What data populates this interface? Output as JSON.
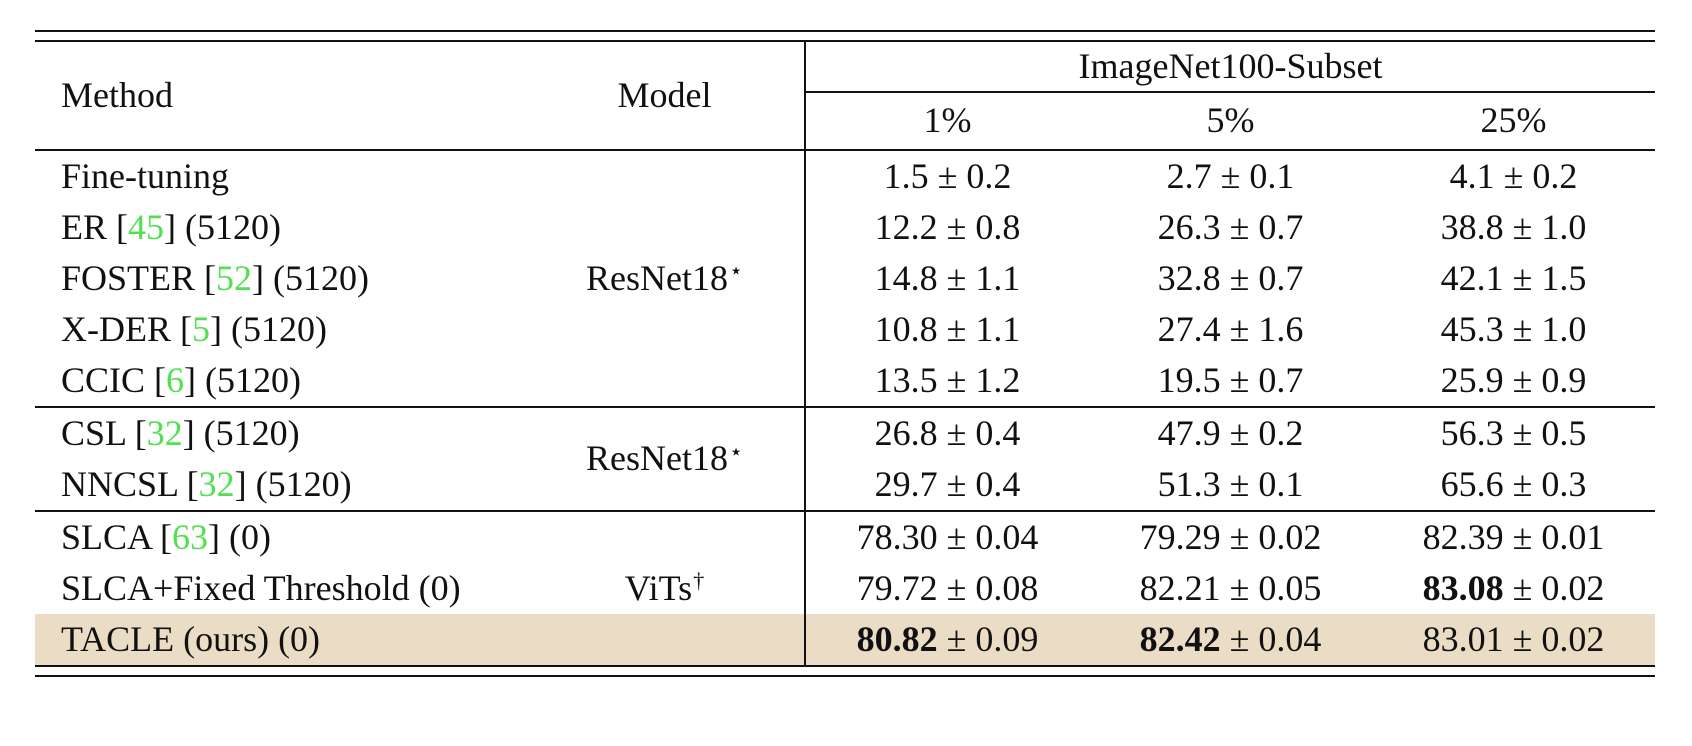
{
  "colors": {
    "highlight": "#ebdcc6",
    "cite": "#50e050",
    "rule": "#111111",
    "text": "#111111"
  },
  "header": {
    "method": "Method",
    "model": "Model",
    "group": "ImageNet100-Subset",
    "sub": [
      "1%",
      "5%",
      "25%"
    ]
  },
  "groups": [
    {
      "model": "ResNet18",
      "model_sup": "⋆",
      "rows": [
        {
          "pre": "Fine-tuning",
          "cite": "",
          "post": "",
          "c1": {
            "v": "1.5",
            "pm": "± 0.2",
            "b": false
          },
          "c2": {
            "v": "2.7",
            "pm": "± 0.1",
            "b": false
          },
          "c3": {
            "v": "4.1",
            "pm": "± 0.2",
            "b": false
          }
        },
        {
          "pre": "ER [",
          "cite": "45",
          "post": "] (5120)",
          "c1": {
            "v": "12.2",
            "pm": "± 0.8",
            "b": false
          },
          "c2": {
            "v": "26.3",
            "pm": "± 0.7",
            "b": false
          },
          "c3": {
            "v": "38.8",
            "pm": "± 1.0",
            "b": false
          }
        },
        {
          "pre": "FOSTER [",
          "cite": "52",
          "post": "] (5120)",
          "c1": {
            "v": "14.8",
            "pm": "± 1.1",
            "b": false
          },
          "c2": {
            "v": "32.8",
            "pm": "± 0.7",
            "b": false
          },
          "c3": {
            "v": "42.1",
            "pm": "± 1.5",
            "b": false
          }
        },
        {
          "pre": "X-DER [",
          "cite": "5",
          "post": "] (5120)",
          "c1": {
            "v": "10.8",
            "pm": "± 1.1",
            "b": false
          },
          "c2": {
            "v": "27.4",
            "pm": "± 1.6",
            "b": false
          },
          "c3": {
            "v": "45.3",
            "pm": "± 1.0",
            "b": false
          }
        },
        {
          "pre": "CCIC [",
          "cite": "6",
          "post": "] (5120)",
          "c1": {
            "v": "13.5",
            "pm": "± 1.2",
            "b": false
          },
          "c2": {
            "v": "19.5",
            "pm": "± 0.7",
            "b": false
          },
          "c3": {
            "v": "25.9",
            "pm": "± 0.9",
            "b": false
          }
        }
      ]
    },
    {
      "model": "ResNet18",
      "model_sup": "⋆",
      "rows": [
        {
          "pre": "CSL [",
          "cite": "32",
          "post": "] (5120)",
          "c1": {
            "v": "26.8",
            "pm": "± 0.4",
            "b": false
          },
          "c2": {
            "v": "47.9",
            "pm": "± 0.2",
            "b": false
          },
          "c3": {
            "v": "56.3",
            "pm": "± 0.5",
            "b": false
          }
        },
        {
          "pre": "NNCSL [",
          "cite": "32",
          "post": "] (5120)",
          "c1": {
            "v": "29.7",
            "pm": "± 0.4",
            "b": false
          },
          "c2": {
            "v": "51.3",
            "pm": "± 0.1",
            "b": false
          },
          "c3": {
            "v": "65.6",
            "pm": "± 0.3",
            "b": false
          }
        }
      ]
    },
    {
      "model": "ViTs",
      "model_sup": "†",
      "rows": [
        {
          "pre": "SLCA [",
          "cite": "63",
          "post": "] (0)",
          "c1": {
            "v": "78.30",
            "pm": "± 0.04",
            "b": false
          },
          "c2": {
            "v": "79.29",
            "pm": "± 0.02",
            "b": false
          },
          "c3": {
            "v": "82.39",
            "pm": "± 0.01",
            "b": false
          }
        },
        {
          "pre": "SLCA+Fixed Threshold (0)",
          "cite": "",
          "post": "",
          "c1": {
            "v": "79.72",
            "pm": "± 0.08",
            "b": false
          },
          "c2": {
            "v": "82.21",
            "pm": "± 0.05",
            "b": false
          },
          "c3": {
            "v": "83.08",
            "pm": "± 0.02",
            "b": true
          }
        },
        {
          "pre": "TACLE (ours) (0)",
          "cite": "",
          "post": "",
          "c1": {
            "v": "80.82",
            "pm": "± 0.09",
            "b": true
          },
          "c2": {
            "v": "82.42",
            "pm": "± 0.04",
            "b": true
          },
          "c3": {
            "v": "83.01",
            "pm": "± 0.02",
            "b": false
          }
        }
      ]
    }
  ]
}
